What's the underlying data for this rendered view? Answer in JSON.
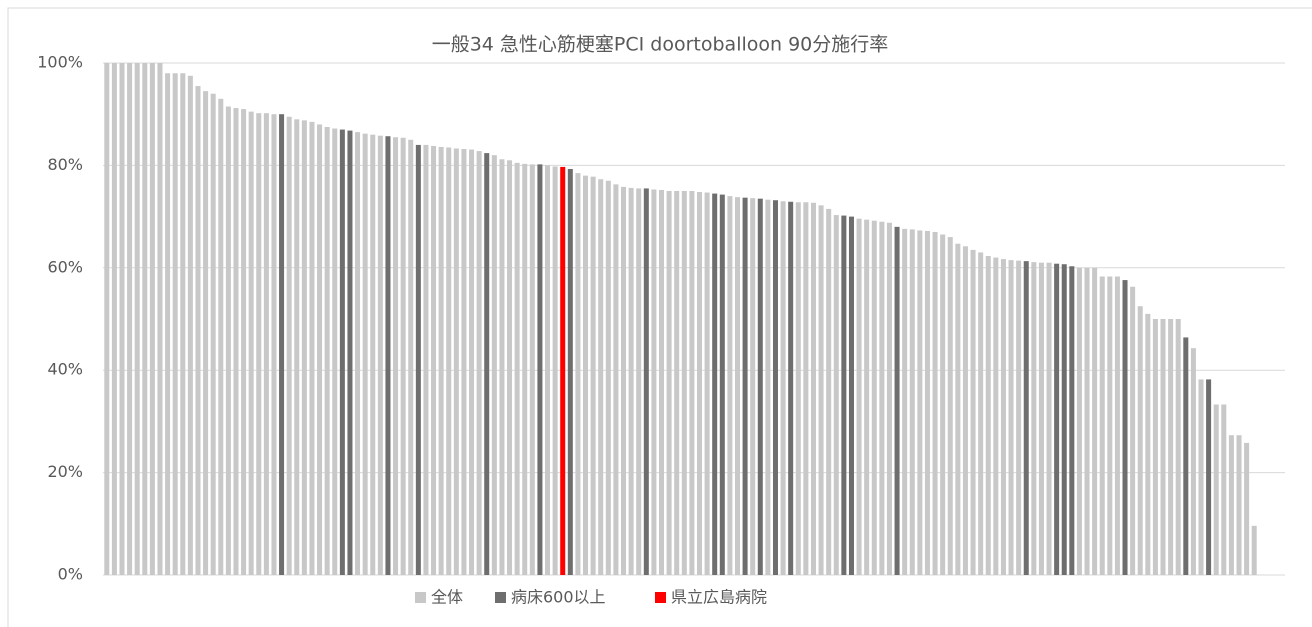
{
  "chart_data": {
    "type": "bar",
    "title": "一般34 急性心筋梗塞PCI doortoballoon 90分施行率",
    "ylim": [
      0,
      100
    ],
    "yticks": [
      {
        "value": 0,
        "label": "0%"
      },
      {
        "value": 20,
        "label": "20%"
      },
      {
        "value": 40,
        "label": "40%"
      },
      {
        "value": 60,
        "label": "60%"
      },
      {
        "value": 80,
        "label": "80%"
      },
      {
        "value": 100,
        "label": "100%"
      }
    ],
    "grid": true,
    "legend": [
      {
        "name": "全体",
        "color": "#c8c8c8"
      },
      {
        "name": "病床600以上",
        "color": "#6e6e6e"
      },
      {
        "name": "県立広島病院",
        "color": "#ff0000"
      }
    ],
    "values": [
      100,
      100,
      100,
      100,
      100,
      100,
      100,
      100,
      98,
      98,
      98,
      97.5,
      95.5,
      94.5,
      94,
      93,
      91.5,
      91.2,
      91,
      90.5,
      90.2,
      90.2,
      90,
      90,
      89.5,
      89,
      88.8,
      88.5,
      88,
      87.5,
      87.2,
      87,
      86.8,
      86.5,
      86.2,
      86,
      85.8,
      85.7,
      85.5,
      85.4,
      85,
      84,
      84,
      83.8,
      83.6,
      83.5,
      83.3,
      83.2,
      83.1,
      82.8,
      82.4,
      82,
      81.2,
      81,
      80.5,
      80.3,
      80.2,
      80.2,
      80,
      79.8,
      79.7,
      79.3,
      78.5,
      78,
      77.8,
      77.3,
      77,
      76.3,
      75.8,
      75.6,
      75.5,
      75.5,
      75.3,
      75.2,
      75,
      75,
      75,
      75,
      74.8,
      74.7,
      74.5,
      74.3,
      74,
      73.8,
      73.7,
      73.6,
      73.5,
      73.3,
      73.2,
      73,
      72.9,
      72.8,
      72.8,
      72.7,
      72.2,
      71.5,
      70.3,
      70.2,
      70,
      69.6,
      69.4,
      69.2,
      69,
      68.8,
      68,
      67.6,
      67.5,
      67.3,
      67.2,
      67,
      66.5,
      66,
      64.7,
      64.2,
      63.5,
      63,
      62.3,
      62,
      61.7,
      61.5,
      61.4,
      61.3,
      61.1,
      61,
      61,
      60.8,
      60.7,
      60.3,
      60,
      60,
      60,
      58.3,
      58.3,
      58.3,
      57.6,
      56.3,
      52.5,
      51,
      50,
      50,
      50,
      50,
      46.4,
      44.3,
      38.2,
      38.2,
      33.3,
      33.3,
      27.3,
      27.3,
      25.8,
      9.6
    ],
    "group": [
      0,
      0,
      0,
      0,
      0,
      0,
      0,
      0,
      0,
      0,
      0,
      0,
      0,
      0,
      0,
      0,
      0,
      0,
      0,
      0,
      0,
      0,
      0,
      1,
      0,
      0,
      0,
      0,
      0,
      0,
      0,
      1,
      1,
      0,
      0,
      0,
      0,
      1,
      0,
      0,
      0,
      1,
      0,
      0,
      0,
      0,
      0,
      0,
      0,
      0,
      1,
      0,
      0,
      0,
      0,
      0,
      0,
      1,
      0,
      0,
      2,
      1,
      0,
      0,
      0,
      0,
      0,
      0,
      0,
      0,
      0,
      1,
      0,
      0,
      0,
      0,
      0,
      0,
      0,
      0,
      1,
      1,
      0,
      0,
      1,
      0,
      1,
      0,
      1,
      0,
      1,
      0,
      0,
      0,
      0,
      0,
      0,
      1,
      1,
      0,
      0,
      0,
      0,
      0,
      1,
      0,
      0,
      0,
      0,
      0,
      0,
      0,
      0,
      0,
      0,
      0,
      0,
      0,
      0,
      0,
      0,
      1,
      0,
      0,
      0,
      1,
      1,
      1,
      0,
      0,
      0,
      0,
      0,
      0,
      1,
      0,
      0,
      0,
      0,
      0,
      0,
      0,
      1,
      0,
      0,
      1,
      0,
      0,
      0,
      0,
      0,
      0
    ]
  }
}
